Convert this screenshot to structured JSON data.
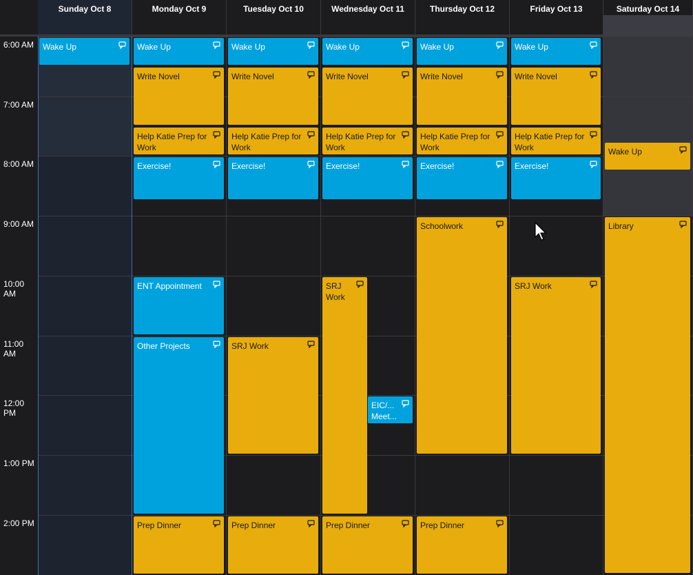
{
  "calendar": {
    "days": [
      {
        "label": "Sunday Oct 8",
        "kind": "today"
      },
      {
        "label": "Monday Oct 9",
        "kind": "weekday"
      },
      {
        "label": "Tuesday Oct 10",
        "kind": "weekday"
      },
      {
        "label": "Wednesday Oct 11",
        "kind": "weekday"
      },
      {
        "label": "Thursday Oct 12",
        "kind": "weekday"
      },
      {
        "label": "Friday Oct 13",
        "kind": "weekday"
      },
      {
        "label": "Saturday Oct 14",
        "kind": "sat"
      }
    ],
    "times": [
      "6:00 AM",
      "7:00 AM",
      "8:00 AM",
      "9:00 AM",
      "10:00 AM",
      "11:00 AM",
      "12:00 PM",
      "1:00 PM",
      "2:00 PM"
    ],
    "colors": {
      "blue": "#00a2de",
      "gold": "#e8ad0c",
      "background": "#1c1c1f",
      "grid": "#3a3a3e"
    },
    "icons": {
      "repeat": "repeat-icon",
      "cursor": "mouse-pointer-icon"
    },
    "events": [
      {
        "day": 0,
        "title": "Wake Up",
        "start": "6:00",
        "end": "6:30",
        "color": "blue"
      },
      {
        "day": 1,
        "title": "Wake Up",
        "start": "6:00",
        "end": "6:30",
        "color": "blue"
      },
      {
        "day": 1,
        "title": "Write Novel",
        "start": "6:30",
        "end": "7:30",
        "color": "gold"
      },
      {
        "day": 1,
        "title": "Help Katie Prep for Work",
        "start": "7:30",
        "end": "8:00",
        "color": "gold"
      },
      {
        "day": 1,
        "title": "Exercise!",
        "start": "8:00",
        "end": "8:45",
        "color": "blue"
      },
      {
        "day": 1,
        "title": "ENT Appointment",
        "start": "10:00",
        "end": "11:00",
        "color": "blue"
      },
      {
        "day": 1,
        "title": "Other Projects",
        "start": "11:00",
        "end": "14:00",
        "color": "blue"
      },
      {
        "day": 1,
        "title": "Prep Dinner",
        "start": "14:00",
        "end": "15:00",
        "color": "gold"
      },
      {
        "day": 2,
        "title": "Wake Up",
        "start": "6:00",
        "end": "6:30",
        "color": "blue"
      },
      {
        "day": 2,
        "title": "Write Novel",
        "start": "6:30",
        "end": "7:30",
        "color": "gold"
      },
      {
        "day": 2,
        "title": "Help Katie Prep for Work",
        "start": "7:30",
        "end": "8:00",
        "color": "gold"
      },
      {
        "day": 2,
        "title": "Exercise!",
        "start": "8:00",
        "end": "8:45",
        "color": "blue"
      },
      {
        "day": 2,
        "title": "SRJ Work",
        "start": "11:00",
        "end": "13:00",
        "color": "gold"
      },
      {
        "day": 2,
        "title": "Prep Dinner",
        "start": "14:00",
        "end": "15:00",
        "color": "gold"
      },
      {
        "day": 3,
        "title": "Wake Up",
        "start": "6:00",
        "end": "6:30",
        "color": "blue"
      },
      {
        "day": 3,
        "title": "Write Novel",
        "start": "6:30",
        "end": "7:30",
        "color": "gold"
      },
      {
        "day": 3,
        "title": "Help Katie Prep for Work",
        "start": "7:30",
        "end": "8:00",
        "color": "gold"
      },
      {
        "day": 3,
        "title": "Exercise!",
        "start": "8:00",
        "end": "8:45",
        "color": "blue"
      },
      {
        "day": 3,
        "title": "SRJ Work",
        "start": "10:00",
        "end": "14:00",
        "color": "gold",
        "lane": 0,
        "lanes": 2
      },
      {
        "day": 3,
        "title": "EIC/... Meet...",
        "start": "12:00",
        "end": "12:30",
        "color": "blue",
        "lane": 1,
        "lanes": 2
      },
      {
        "day": 3,
        "title": "Prep Dinner",
        "start": "14:00",
        "end": "15:00",
        "color": "gold"
      },
      {
        "day": 4,
        "title": "Wake Up",
        "start": "6:00",
        "end": "6:30",
        "color": "blue"
      },
      {
        "day": 4,
        "title": "Write Novel",
        "start": "6:30",
        "end": "7:30",
        "color": "gold"
      },
      {
        "day": 4,
        "title": "Help Katie Prep for Work",
        "start": "7:30",
        "end": "8:00",
        "color": "gold"
      },
      {
        "day": 4,
        "title": "Exercise!",
        "start": "8:00",
        "end": "8:45",
        "color": "blue"
      },
      {
        "day": 4,
        "title": "Schoolwork",
        "start": "9:00",
        "end": "13:00",
        "color": "gold"
      },
      {
        "day": 4,
        "title": "Prep Dinner",
        "start": "14:00",
        "end": "15:00",
        "color": "gold"
      },
      {
        "day": 5,
        "title": "Wake Up",
        "start": "6:00",
        "end": "6:30",
        "color": "blue"
      },
      {
        "day": 5,
        "title": "Write Novel",
        "start": "6:30",
        "end": "7:30",
        "color": "gold"
      },
      {
        "day": 5,
        "title": "Help Katie Prep for Work",
        "start": "7:30",
        "end": "8:00",
        "color": "gold"
      },
      {
        "day": 5,
        "title": "Exercise!",
        "start": "8:00",
        "end": "8:45",
        "color": "blue"
      },
      {
        "day": 5,
        "title": "SRJ Work",
        "start": "10:00",
        "end": "13:00",
        "color": "gold"
      },
      {
        "day": 6,
        "title": "Wake Up",
        "start": "7:45",
        "end": "8:15",
        "color": "gold"
      },
      {
        "day": 6,
        "title": "Library",
        "start": "9:00",
        "end": "15:00",
        "color": "gold"
      }
    ]
  }
}
